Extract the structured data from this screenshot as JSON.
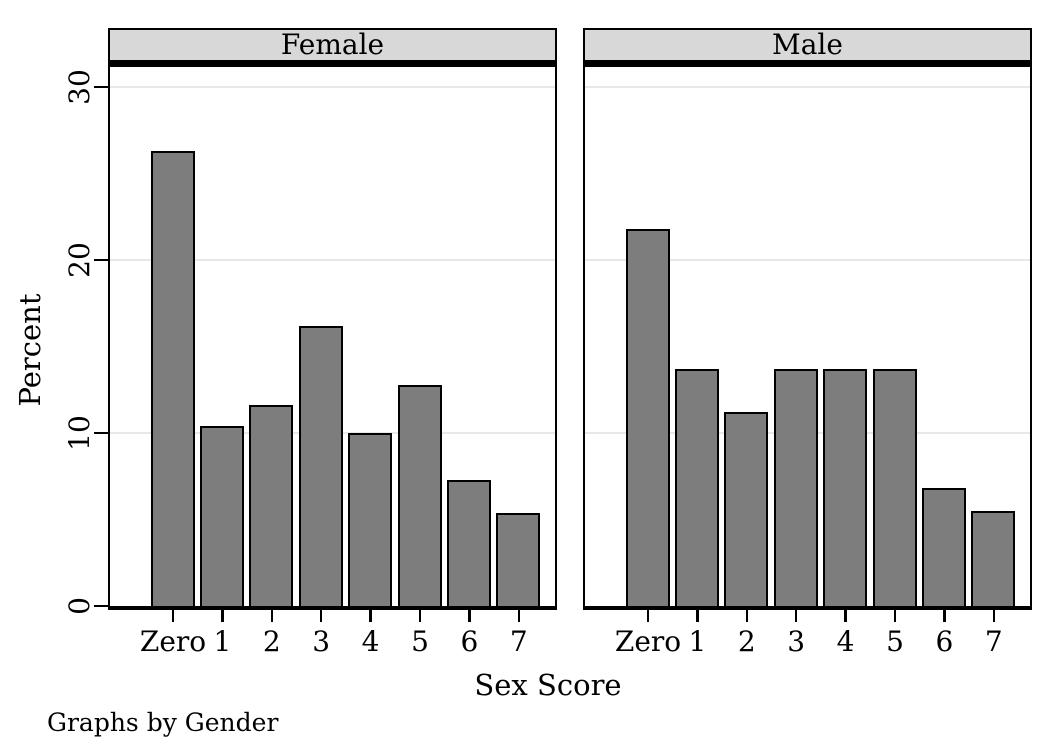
{
  "chart_data": {
    "type": "bar",
    "title": "",
    "xlabel": "Sex Score",
    "ylabel": "Percent",
    "note": "Graphs by Gender",
    "categories": [
      "Zero",
      "1",
      "2",
      "3",
      "4",
      "5",
      "6",
      "7"
    ],
    "panels": [
      {
        "title": "Female",
        "values": [
          26.3,
          10.4,
          11.6,
          16.2,
          10.0,
          12.8,
          7.3,
          5.4
        ]
      },
      {
        "title": "Male",
        "values": [
          21.8,
          13.7,
          11.2,
          13.7,
          13.7,
          13.7,
          6.8,
          5.5
        ]
      }
    ],
    "yticks": [
      0,
      10,
      20,
      30
    ],
    "ylim": [
      0,
      31.15
    ],
    "grid": "horizontal",
    "legend": "none",
    "colors": {
      "bar_fill": "#7d7d7d",
      "bar_border": "#000000",
      "band_fill": "#d8d8d8",
      "gridline": "#e8e8e8",
      "axis": "#000000",
      "background": "#ffffff"
    }
  }
}
